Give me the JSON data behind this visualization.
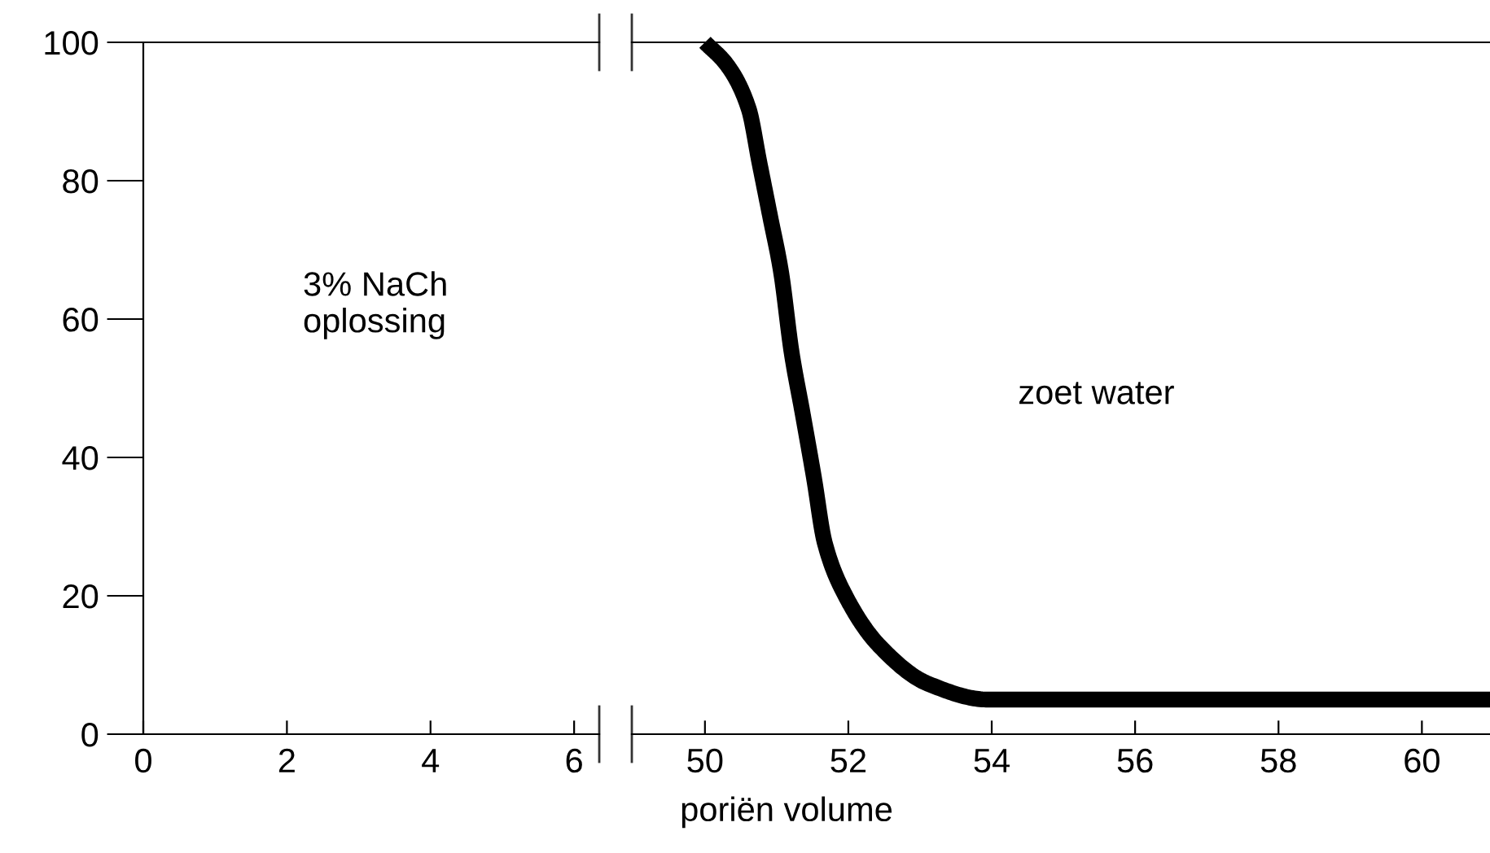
{
  "chart_data": [
    {
      "type": "line",
      "xlim": [
        0,
        6.35
      ],
      "xticks": [
        0,
        2,
        4,
        6
      ],
      "ylim": [
        0,
        100
      ],
      "yticks": [
        0,
        20,
        40,
        60,
        80,
        100
      ],
      "annotations": [
        "3% NaCh\noplossing"
      ],
      "grid": false
    },
    {
      "type": "line",
      "xlabel": "poriën volume",
      "x": [
        50.0,
        50.31,
        50.61,
        50.76,
        50.91,
        51.06,
        51.21,
        51.36,
        51.52,
        51.67,
        51.97,
        52.43,
        53.11,
        53.95,
        60.95
      ],
      "series": [
        {
          "color": "#000000",
          "values": [
            100,
            96.7,
            90.4,
            82.6,
            74.8,
            66.9,
            55.1,
            46.5,
            37.1,
            27.7,
            19.8,
            12.8,
            7.3,
            5,
            5
          ]
        }
      ],
      "xlim": [
        48.98,
        60.95
      ],
      "xticks": [
        50,
        52,
        54,
        56,
        58,
        60
      ],
      "ylim": [
        0,
        100
      ],
      "tick_labels": "x",
      "annotations": [
        "zoet water"
      ],
      "grid": false,
      "line_style": "solid"
    }
  ]
}
